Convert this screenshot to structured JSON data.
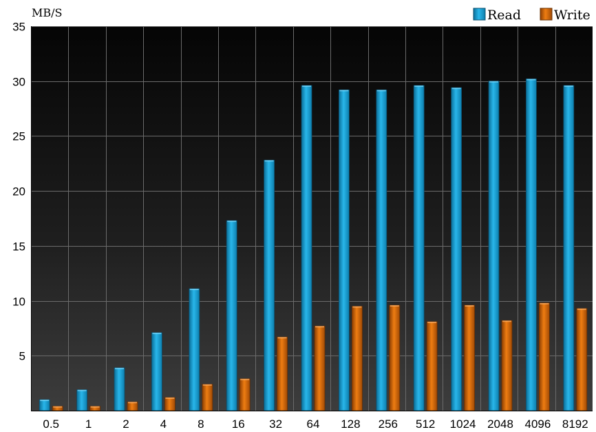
{
  "chart_data": {
    "type": "bar",
    "ylabel": "MB/S",
    "xlabel": "",
    "ylim": [
      0,
      35
    ],
    "yticks": [
      "5",
      "10",
      "15",
      "20",
      "25",
      "30",
      "35"
    ],
    "categories": [
      "0.5",
      "1",
      "2",
      "4",
      "8",
      "16",
      "32",
      "64",
      "128",
      "256",
      "512",
      "1024",
      "2048",
      "4096",
      "8192"
    ],
    "series": [
      {
        "name": "Read",
        "color": "#1aa7dc",
        "values": [
          1.0,
          1.9,
          3.9,
          7.1,
          11.1,
          17.3,
          22.8,
          29.6,
          29.2,
          29.2,
          29.6,
          29.4,
          30.0,
          30.2,
          29.6
        ]
      },
      {
        "name": "Write",
        "color": "#e0700e",
        "values": [
          0.4,
          0.4,
          0.8,
          1.2,
          2.4,
          2.9,
          6.7,
          7.7,
          9.5,
          9.6,
          8.1,
          9.6,
          8.2,
          9.8,
          9.3
        ]
      }
    ],
    "legend": "top-right",
    "grid": true,
    "background": "#0a0a0a",
    "grid_color": "#6b6b6b"
  }
}
